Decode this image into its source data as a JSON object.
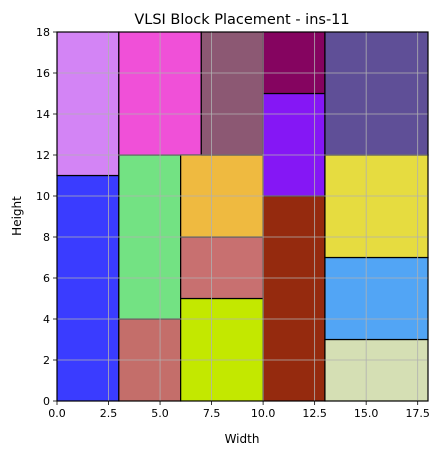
{
  "chart_data": {
    "type": "block-placement",
    "title": "VLSI Block Placement - ins-11",
    "xlabel": "Width",
    "ylabel": "Height",
    "xlim": [
      0,
      18
    ],
    "ylim": [
      0,
      18
    ],
    "grid": true,
    "x_ticks": [
      0,
      2.5,
      5,
      7.5,
      10,
      12.5,
      15,
      17.5
    ],
    "x_tick_labels": [
      "0.0",
      "2.5",
      "5.0",
      "7.5",
      "10.0",
      "12.5",
      "15.0",
      "17.5"
    ],
    "y_ticks": [
      0,
      2,
      4,
      6,
      8,
      10,
      12,
      14,
      16,
      18
    ],
    "y_tick_labels": [
      "0",
      "2",
      "4",
      "6",
      "8",
      "10",
      "12",
      "14",
      "16",
      "18"
    ],
    "blocks": [
      {
        "x": 0,
        "y": 0,
        "w": 3,
        "h": 11,
        "color": "#3a3cff"
      },
      {
        "x": 0,
        "y": 11,
        "w": 3,
        "h": 7,
        "color": "#d384f5"
      },
      {
        "x": 3,
        "y": 0,
        "w": 3,
        "h": 4,
        "color": "#c46e6a"
      },
      {
        "x": 3,
        "y": 4,
        "w": 3,
        "h": 8,
        "color": "#73e283"
      },
      {
        "x": 3,
        "y": 12,
        "w": 4,
        "h": 6,
        "color": "#f050d8"
      },
      {
        "x": 6,
        "y": 0,
        "w": 4,
        "h": 5,
        "color": "#c3e800"
      },
      {
        "x": 6,
        "y": 5,
        "w": 4,
        "h": 3,
        "color": "#c87070"
      },
      {
        "x": 6,
        "y": 8,
        "w": 4,
        "h": 4,
        "color": "#efba40"
      },
      {
        "x": 7,
        "y": 12,
        "w": 3,
        "h": 6,
        "color": "#8c5873"
      },
      {
        "x": 10,
        "y": 0,
        "w": 3,
        "h": 10,
        "color": "#952a0e"
      },
      {
        "x": 10,
        "y": 10,
        "w": 3,
        "h": 5,
        "color": "#8517f5"
      },
      {
        "x": 10,
        "y": 15,
        "w": 3,
        "h": 3,
        "color": "#850460"
      },
      {
        "x": 13,
        "y": 0,
        "w": 5,
        "h": 3,
        "color": "#d5dfb4"
      },
      {
        "x": 13,
        "y": 3,
        "w": 5,
        "h": 4,
        "color": "#52a5f5"
      },
      {
        "x": 13,
        "y": 7,
        "w": 5,
        "h": 5,
        "color": "#e6dc40"
      },
      {
        "x": 13,
        "y": 12,
        "w": 5,
        "h": 6,
        "color": "#5f4f97"
      }
    ]
  }
}
